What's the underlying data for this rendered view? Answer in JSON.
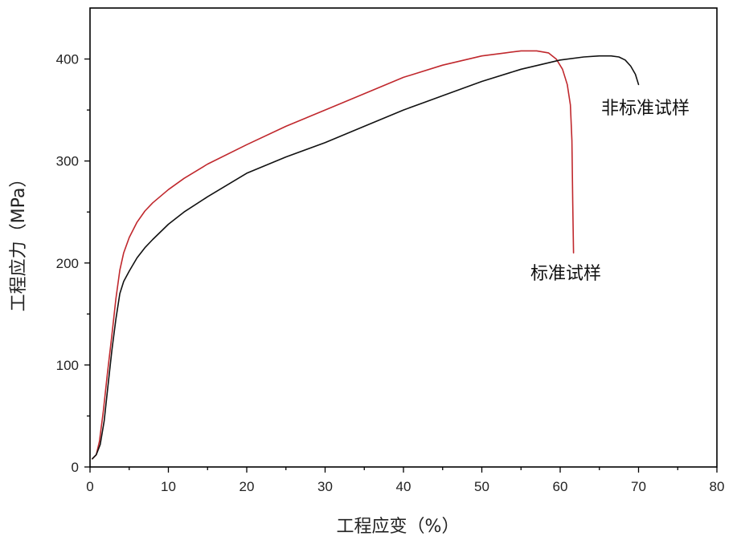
{
  "chart_data": {
    "type": "line",
    "xlabel": "工程应变（%）",
    "ylabel": "工程应力（MPa）",
    "xlim": [
      0,
      80
    ],
    "ylim": [
      0,
      450
    ],
    "x_ticks": [
      0,
      10,
      20,
      30,
      40,
      50,
      60,
      70,
      80
    ],
    "x_tick_labels": [
      "0",
      "10",
      "20",
      "30",
      "40",
      "50",
      "60",
      "70",
      "80"
    ],
    "y_ticks": [
      0,
      100,
      200,
      300,
      400
    ],
    "y_tick_labels": [
      "0",
      "100",
      "200",
      "300",
      "400"
    ],
    "grid": false,
    "series": [
      {
        "name": "标准试样",
        "color": "#c0282d",
        "x": [
          0.3,
          0.8,
          1.2,
          1.7,
          2.2,
          2.8,
          3.3,
          3.8,
          4.3,
          5,
          6,
          7,
          8,
          10,
          12,
          15,
          20,
          25,
          30,
          35,
          40,
          45,
          50,
          53,
          55,
          57,
          58.5,
          59.5,
          60.3,
          60.9,
          61.3,
          61.5,
          61.6,
          61.7
        ],
        "y": [
          8,
          12,
          25,
          55,
          90,
          130,
          165,
          193,
          210,
          225,
          240,
          251,
          259,
          272,
          283,
          297,
          316,
          334,
          350,
          366,
          382,
          394,
          403,
          406,
          408,
          408,
          406,
          400,
          390,
          375,
          355,
          320,
          260,
          210
        ]
      },
      {
        "name": "非标准试样",
        "color": "#111111",
        "x": [
          0.3,
          0.8,
          1.3,
          1.8,
          2.3,
          2.8,
          3.3,
          3.8,
          4.3,
          5,
          6,
          7,
          8,
          10,
          12,
          15,
          20,
          25,
          30,
          35,
          40,
          45,
          50,
          55,
          60,
          63,
          65,
          66.5,
          67.5,
          68.3,
          69,
          69.6,
          70
        ],
        "y": [
          8,
          12,
          22,
          45,
          80,
          115,
          145,
          170,
          182,
          192,
          205,
          215,
          223,
          238,
          250,
          265,
          288,
          304,
          318,
          334,
          350,
          364,
          378,
          390,
          399,
          402,
          403,
          403,
          402,
          399,
          393,
          385,
          375
        ]
      }
    ],
    "annotations": [
      {
        "text": "非标准试样",
        "series": "非标准试样"
      },
      {
        "text": "标准试样",
        "series": "标准试样"
      }
    ]
  }
}
